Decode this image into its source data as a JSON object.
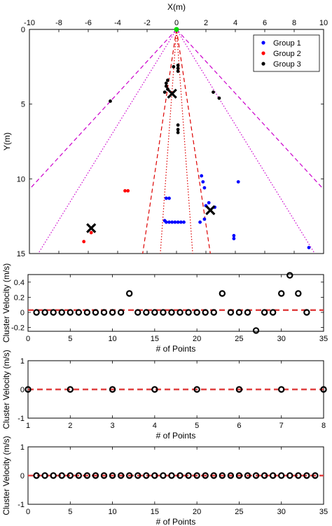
{
  "chart_data": [
    {
      "type": "scatter",
      "title": "",
      "xlabel": "X(m)",
      "ylabel": "Y(m)",
      "xlim": [
        -10,
        10
      ],
      "ylim": [
        0,
        15
      ],
      "x_ticks": [
        -10,
        -8,
        -6,
        -4,
        -2,
        0,
        2,
        4,
        6,
        8,
        10
      ],
      "y_ticks": [
        0,
        5,
        10,
        15
      ],
      "y_reversed": true,
      "x_axis_position": "top",
      "legend_placement": "top-right",
      "series": [
        {
          "name": "Group 1",
          "color": "#0000ff",
          "points": [
            [
              1.7,
              9.8
            ],
            [
              1.8,
              10.2
            ],
            [
              1.9,
              10.6
            ],
            [
              2.0,
              11.8
            ],
            [
              2.2,
              11.6
            ],
            [
              2.6,
              11.9
            ],
            [
              4.2,
              10.2
            ],
            [
              -0.7,
              11.3
            ],
            [
              -0.5,
              11.3
            ],
            [
              -0.8,
              12.8
            ],
            [
              -0.7,
              12.9
            ],
            [
              -0.5,
              12.9
            ],
            [
              -0.3,
              12.9
            ],
            [
              -0.1,
              12.9
            ],
            [
              0.1,
              12.9
            ],
            [
              0.3,
              12.9
            ],
            [
              0.5,
              12.9
            ],
            [
              1.6,
              12.9
            ],
            [
              1.9,
              12.7
            ],
            [
              3.9,
              13.8
            ],
            [
              3.9,
              14.0
            ],
            [
              9.0,
              14.6
            ]
          ]
        },
        {
          "name": "Group 2",
          "color": "#ff0000",
          "points": [
            [
              -3.5,
              10.8
            ],
            [
              -3.3,
              10.8
            ],
            [
              -5.8,
              13.6
            ],
            [
              -6.3,
              14.2
            ]
          ]
        },
        {
          "name": "Group 3",
          "color": "#000000",
          "points": [
            [
              0.1,
              2.4
            ],
            [
              0.1,
              2.6
            ],
            [
              0.1,
              2.8
            ],
            [
              -0.2,
              2.5
            ],
            [
              -0.6,
              3.4
            ],
            [
              -0.7,
              3.6
            ],
            [
              -0.7,
              3.8
            ],
            [
              -0.6,
              4.0
            ],
            [
              -0.8,
              4.2
            ],
            [
              2.5,
              4.2
            ],
            [
              2.9,
              4.6
            ],
            [
              0.1,
              6.4
            ],
            [
              0.1,
              6.7
            ],
            [
              0.1,
              6.9
            ],
            [
              -4.5,
              4.8
            ]
          ]
        }
      ],
      "centroids": [
        [
          -0.3,
          4.3
        ],
        [
          2.3,
          12.1
        ],
        [
          -5.8,
          13.3
        ]
      ],
      "origin_marker": {
        "x": 0,
        "y": 0,
        "color": "#00dd00"
      },
      "boundary_lines": [
        {
          "style": "dashed",
          "color": "#cc00cc",
          "points": [
            [
              0,
              0
            ],
            [
              -10,
              10.7
            ]
          ]
        },
        {
          "style": "dashed",
          "color": "#cc00cc",
          "points": [
            [
              0,
              0
            ],
            [
              10,
              10.7
            ]
          ]
        },
        {
          "style": "dotted",
          "color": "#cc00cc",
          "points": [
            [
              0,
              0
            ],
            [
              -9.4,
              15
            ]
          ]
        },
        {
          "style": "dotted",
          "color": "#cc00cc",
          "points": [
            [
              0,
              0
            ],
            [
              9.4,
              15
            ]
          ]
        },
        {
          "style": "dashed",
          "color": "#dd0000",
          "points": [
            [
              0,
              0
            ],
            [
              -2.3,
              15
            ]
          ]
        },
        {
          "style": "dashed",
          "color": "#dd0000",
          "points": [
            [
              0,
              0
            ],
            [
              2.3,
              15
            ]
          ]
        },
        {
          "style": "dotted",
          "color": "#dd0000",
          "points": [
            [
              0,
              0
            ],
            [
              -1.1,
              15
            ]
          ]
        },
        {
          "style": "dotted",
          "color": "#dd0000",
          "points": [
            [
              0,
              0
            ],
            [
              1.1,
              15
            ]
          ]
        }
      ]
    },
    {
      "type": "scatter",
      "xlabel": "# of Points",
      "ylabel": "Cluster Velocity (m/s)",
      "xlim": [
        0,
        35
      ],
      "ylim": [
        -0.25,
        0.5
      ],
      "x_ticks": [
        0,
        5,
        10,
        15,
        20,
        25,
        30,
        35
      ],
      "y_ticks": [
        -0.2,
        0,
        0.2,
        0.4
      ],
      "y_tick_labels": [
        "-0.2",
        "0",
        "0.2",
        "0.4"
      ],
      "reference_line": {
        "y": 0.03,
        "color": "#e04040",
        "style": "dashed"
      },
      "points": [
        [
          1,
          0
        ],
        [
          2,
          0
        ],
        [
          3,
          0
        ],
        [
          4,
          0
        ],
        [
          5,
          0
        ],
        [
          6,
          0
        ],
        [
          7,
          0
        ],
        [
          8,
          0
        ],
        [
          9,
          0
        ],
        [
          10,
          0
        ],
        [
          11,
          0
        ],
        [
          12,
          0.25
        ],
        [
          13,
          0
        ],
        [
          14,
          0
        ],
        [
          15,
          0
        ],
        [
          16,
          0
        ],
        [
          17,
          0
        ],
        [
          18,
          0
        ],
        [
          19,
          0
        ],
        [
          20,
          0
        ],
        [
          21,
          0
        ],
        [
          22,
          0
        ],
        [
          23,
          0.25
        ],
        [
          24,
          0
        ],
        [
          25,
          0
        ],
        [
          26,
          0
        ],
        [
          27,
          -0.24
        ],
        [
          28,
          0
        ],
        [
          29,
          0
        ],
        [
          30,
          0.25
        ],
        [
          31,
          0.49
        ],
        [
          32,
          0.25
        ],
        [
          33,
          0
        ]
      ]
    },
    {
      "type": "scatter",
      "xlabel": "# of Points",
      "ylabel": "Cluster Velocity (m/s)",
      "xlim": [
        1,
        8
      ],
      "ylim": [
        -1,
        1
      ],
      "x_ticks": [
        1,
        2,
        3,
        4,
        5,
        6,
        7,
        8
      ],
      "y_ticks": [
        -1,
        0,
        1
      ],
      "reference_line": {
        "y": 0,
        "color": "#e04040",
        "style": "dashed"
      },
      "points": [
        [
          1,
          0
        ],
        [
          2,
          0
        ],
        [
          3,
          0
        ],
        [
          4,
          0
        ],
        [
          5,
          0
        ],
        [
          6,
          0
        ],
        [
          7,
          0
        ],
        [
          8,
          0
        ]
      ]
    },
    {
      "type": "scatter",
      "xlabel": "# of Points",
      "ylabel": "Cluster Velocity (m/s)",
      "xlim": [
        0,
        35
      ],
      "ylim": [
        -1,
        1
      ],
      "x_ticks": [
        0,
        5,
        10,
        15,
        20,
        25,
        30,
        35
      ],
      "y_ticks": [
        -1,
        0,
        1
      ],
      "reference_line": {
        "y": 0,
        "color": "#e04040",
        "style": "dashed"
      },
      "points": [
        [
          1,
          0
        ],
        [
          2,
          0
        ],
        [
          3,
          0
        ],
        [
          4,
          0
        ],
        [
          5,
          0
        ],
        [
          6,
          0
        ],
        [
          7,
          0
        ],
        [
          8,
          0
        ],
        [
          9,
          0
        ],
        [
          10,
          0
        ],
        [
          11,
          0
        ],
        [
          12,
          0
        ],
        [
          13,
          0
        ],
        [
          14,
          0
        ],
        [
          15,
          0
        ],
        [
          16,
          0
        ],
        [
          17,
          0
        ],
        [
          18,
          0
        ],
        [
          19,
          0
        ],
        [
          20,
          0
        ],
        [
          21,
          0
        ],
        [
          22,
          0
        ],
        [
          23,
          0
        ],
        [
          24,
          0
        ],
        [
          25,
          0
        ],
        [
          26,
          0
        ],
        [
          27,
          0
        ],
        [
          28,
          0
        ],
        [
          29,
          0
        ],
        [
          30,
          0
        ],
        [
          31,
          0
        ],
        [
          32,
          0
        ],
        [
          33,
          0
        ],
        [
          34,
          0
        ]
      ]
    }
  ]
}
